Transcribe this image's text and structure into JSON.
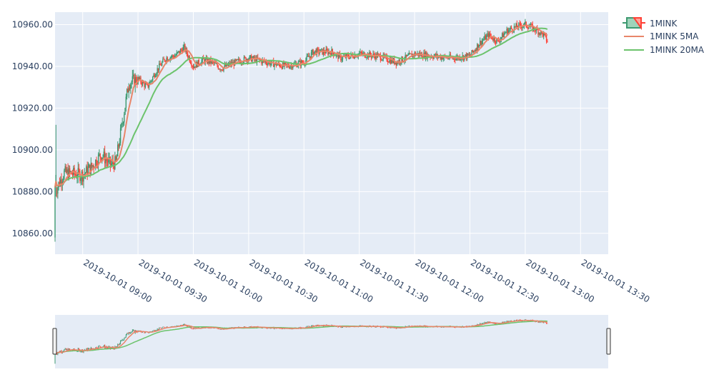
{
  "chart_data": {
    "type": "candlestick",
    "x_unit": "datetime",
    "x_range": [
      "2019-10-01 08:45",
      "2019-10-01 13:45"
    ],
    "y_range": [
      10850,
      10966
    ],
    "y_ticks": [
      {
        "value": 10860,
        "label": "10860.00"
      },
      {
        "value": 10880,
        "label": "10880.00"
      },
      {
        "value": 10900,
        "label": "10900.00"
      },
      {
        "value": 10920,
        "label": "10920.00"
      },
      {
        "value": 10940,
        "label": "10940.00"
      },
      {
        "value": 10960,
        "label": "10960.00"
      }
    ],
    "x_ticks": [
      {
        "value": "2019-10-01 09:00",
        "label": "2019-10-01 09:00"
      },
      {
        "value": "2019-10-01 09:30",
        "label": "2019-10-01 09:30"
      },
      {
        "value": "2019-10-01 10:00",
        "label": "2019-10-01 10:00"
      },
      {
        "value": "2019-10-01 10:30",
        "label": "2019-10-01 10:30"
      },
      {
        "value": "2019-10-01 11:00",
        "label": "2019-10-01 11:00"
      },
      {
        "value": "2019-10-01 11:30",
        "label": "2019-10-01 11:30"
      },
      {
        "value": "2019-10-01 12:00",
        "label": "2019-10-01 12:00"
      },
      {
        "value": "2019-10-01 12:30",
        "label": "2019-10-01 12:30"
      },
      {
        "value": "2019-10-01 13:00",
        "label": "2019-10-01 13:00"
      },
      {
        "value": "2019-10-01 13:30",
        "label": "2019-10-01 13:30"
      }
    ],
    "close_anchors": [
      [
        "08:45",
        10880
      ],
      [
        "08:50",
        10889
      ],
      [
        "09:00",
        10888
      ],
      [
        "09:05",
        10892
      ],
      [
        "09:10",
        10898
      ],
      [
        "09:15",
        10893
      ],
      [
        "09:18",
        10894
      ],
      [
        "09:20",
        10905
      ],
      [
        "09:25",
        10932
      ],
      [
        "09:30",
        10934
      ],
      [
        "09:35",
        10930
      ],
      [
        "09:40",
        10938
      ],
      [
        "09:45",
        10944
      ],
      [
        "09:50",
        10945
      ],
      [
        "09:55",
        10949
      ],
      [
        "10:00",
        10940
      ],
      [
        "10:05",
        10943
      ],
      [
        "10:10",
        10942
      ],
      [
        "10:15",
        10939
      ],
      [
        "10:20",
        10941
      ],
      [
        "10:30",
        10944
      ],
      [
        "10:40",
        10942
      ],
      [
        "10:50",
        10940
      ],
      [
        "11:00",
        10942
      ],
      [
        "11:05",
        10947
      ],
      [
        "11:15",
        10947
      ],
      [
        "11:20",
        10944
      ],
      [
        "11:30",
        10946
      ],
      [
        "11:40",
        10945
      ],
      [
        "11:50",
        10942
      ],
      [
        "12:00",
        10946
      ],
      [
        "12:10",
        10945
      ],
      [
        "12:20",
        10944
      ],
      [
        "12:30",
        10945
      ],
      [
        "12:35",
        10951
      ],
      [
        "12:40",
        10955
      ],
      [
        "12:45",
        10952
      ],
      [
        "12:50",
        10957
      ],
      [
        "12:55",
        10959
      ],
      [
        "13:00",
        10960
      ],
      [
        "13:05",
        10958
      ],
      [
        "13:10",
        10955
      ],
      [
        "13:12",
        10952
      ]
    ],
    "series": [
      {
        "name": "1MINK",
        "kind": "candlestick",
        "increasing_color": "#3d9970",
        "decreasing_color": "#ff4136"
      },
      {
        "name": "1MINK 5MA",
        "kind": "line",
        "color": "#e8866a",
        "window": 5
      },
      {
        "name": "1MINK 20MA",
        "kind": "line",
        "color": "#6cc36c",
        "window": 20
      }
    ],
    "rangeslider": true,
    "legend_position": "top-right",
    "grid": true
  },
  "colors": {
    "plot_bg": "#e5ecf6",
    "grid": "#ffffff",
    "tick_text": "#2a3f5f",
    "increasing": "#3d9970",
    "decreasing": "#ff4136",
    "ma5": "#e8866a",
    "ma20": "#6cc36c"
  }
}
